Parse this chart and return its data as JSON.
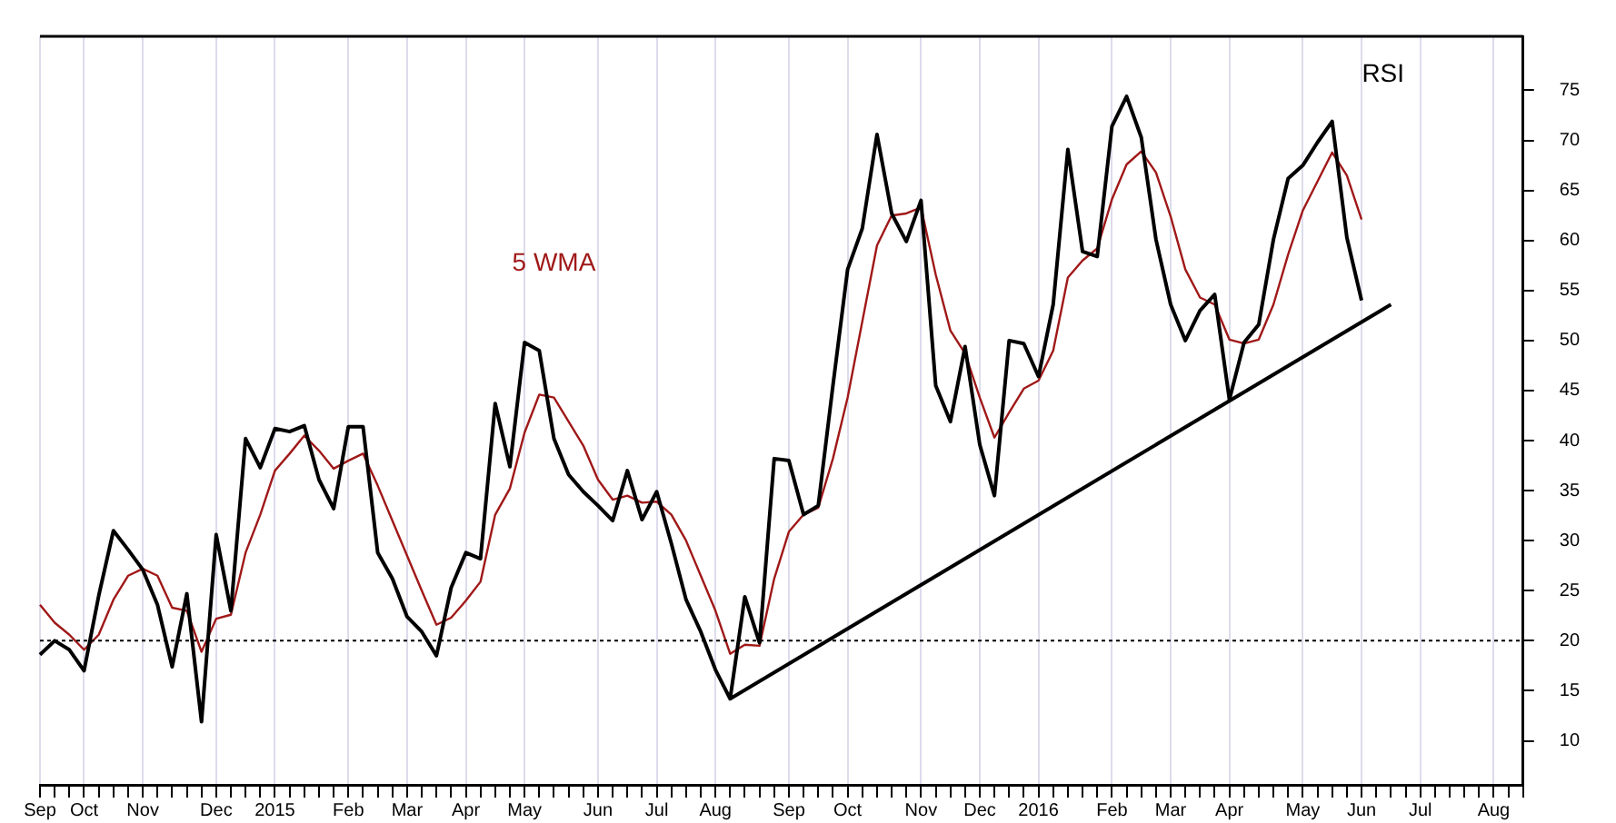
{
  "chart_data": {
    "type": "line",
    "categories": [
      "Sep",
      null,
      null,
      "Oct",
      null,
      null,
      null,
      "Nov",
      null,
      null,
      null,
      null,
      "Dec",
      null,
      null,
      null,
      "2015",
      null,
      null,
      null,
      null,
      "Feb",
      null,
      null,
      null,
      "Mar",
      null,
      null,
      null,
      "Apr",
      null,
      null,
      null,
      "May",
      null,
      null,
      null,
      null,
      "Jun",
      null,
      null,
      null,
      "Jul",
      null,
      null,
      null,
      "Aug",
      null,
      null,
      null,
      null,
      "Sep",
      null,
      null,
      null,
      "Oct",
      null,
      null,
      null,
      null,
      "Nov",
      null,
      null,
      null,
      "Dec",
      null,
      null,
      null,
      "2016",
      null,
      null,
      null,
      null,
      "Feb",
      null,
      null,
      null,
      "Mar",
      null,
      null,
      null,
      "Apr",
      null,
      null,
      null,
      null,
      "May",
      null,
      null,
      null,
      "Jun",
      null,
      null,
      null,
      "Jul",
      null,
      null,
      null,
      null,
      "Aug",
      null,
      null
    ],
    "series": [
      {
        "name": "RSI",
        "color": "#000000",
        "values": [
          18.6,
          20.0,
          19.1,
          17.0,
          24.5,
          31.0,
          29.1,
          27.1,
          23.6,
          17.4,
          24.7,
          11.9,
          30.6,
          23.0,
          40.2,
          37.3,
          41.2,
          40.9,
          41.5,
          36.1,
          33.2,
          41.4,
          41.4,
          28.8,
          26.2,
          22.4,
          20.9,
          18.5,
          25.3,
          28.8,
          28.2,
          43.7,
          37.4,
          49.8,
          49.0,
          40.2,
          36.6,
          34.9,
          33.5,
          32.0,
          37.0,
          32.1,
          34.9,
          29.7,
          24.1,
          20.9,
          17.1,
          14.2,
          24.4,
          19.8,
          38.2,
          38.0,
          32.6,
          33.5,
          45.5,
          57.1,
          61.2,
          70.6,
          62.7,
          59.9,
          64.0,
          45.5,
          41.9,
          49.4,
          39.6,
          34.5,
          50.0,
          49.7,
          46.4,
          53.6,
          69.1,
          58.9,
          58.4,
          71.4,
          74.4,
          70.3,
          60.1,
          53.6,
          50.0,
          53.0,
          54.6,
          44.1,
          49.8,
          51.6,
          60.1,
          66.2,
          67.5,
          69.8,
          71.9,
          60.3,
          54.0,
          null,
          null,
          null,
          null,
          null,
          null,
          null,
          null,
          null,
          null,
          null
        ]
      },
      {
        "name": "5 WMA",
        "color": "#a01818",
        "values": [
          23.6,
          21.8,
          20.6,
          19.1,
          20.6,
          24.1,
          26.5,
          27.2,
          26.5,
          23.3,
          23.0,
          18.9,
          22.2,
          22.6,
          28.8,
          32.6,
          37.0,
          38.7,
          40.5,
          39.0,
          37.2,
          38.0,
          38.7,
          35.5,
          32.0,
          28.5,
          25.0,
          21.6,
          22.3,
          24.0,
          25.9,
          32.6,
          35.2,
          40.8,
          44.6,
          44.3,
          41.9,
          39.5,
          36.1,
          34.1,
          34.5,
          33.8,
          33.9,
          32.6,
          30.0,
          26.5,
          23.0,
          18.7,
          19.6,
          19.5,
          26.2,
          30.9,
          32.6,
          33.3,
          38.2,
          44.3,
          51.9,
          59.5,
          62.5,
          62.7,
          63.3,
          56.6,
          51.0,
          48.7,
          44.3,
          40.3,
          42.8,
          45.2,
          46.0,
          49.0,
          56.3,
          58.0,
          59.2,
          64.1,
          67.6,
          68.9,
          66.8,
          62.4,
          57.1,
          54.3,
          53.6,
          50.1,
          49.7,
          50.1,
          53.6,
          58.6,
          63.0,
          65.9,
          68.8,
          66.5,
          62.1,
          null,
          null,
          null,
          null,
          null,
          null,
          null,
          null,
          null,
          null,
          null
        ]
      },
      {
        "color": "#000000",
        "values": [
          null,
          null,
          null,
          null,
          null,
          null,
          null,
          null,
          null,
          null,
          null,
          null,
          null,
          null,
          null,
          null,
          null,
          null,
          null,
          null,
          null,
          null,
          null,
          null,
          null,
          null,
          null,
          null,
          null,
          null,
          null,
          null,
          null,
          null,
          null,
          null,
          null,
          null,
          null,
          null,
          null,
          null,
          null,
          null,
          null,
          null,
          null,
          14.2,
          null,
          null,
          null,
          null,
          null,
          null,
          null,
          null,
          null,
          null,
          null,
          null,
          null,
          null,
          null,
          null,
          null,
          null,
          null,
          null,
          null,
          null,
          null,
          null,
          null,
          null,
          null,
          null,
          null,
          null,
          null,
          null,
          null,
          null,
          null,
          null,
          null,
          null,
          null,
          null,
          null,
          null,
          null,
          null,
          53.6,
          null,
          null,
          null,
          null,
          null,
          null,
          null,
          null,
          null
        ]
      }
    ],
    "ylim": [
      5.6,
      80.4
    ],
    "yticks": [
      10,
      15,
      20,
      25,
      30,
      35,
      40,
      45,
      50,
      55,
      60,
      65,
      70,
      75
    ],
    "ref_lines": [
      {
        "axis": "y",
        "value": 20,
        "color": "#000000",
        "line_style": "dotted"
      }
    ],
    "grid": "x",
    "legend": false,
    "marker": "none",
    "line_style": "solid"
  }
}
